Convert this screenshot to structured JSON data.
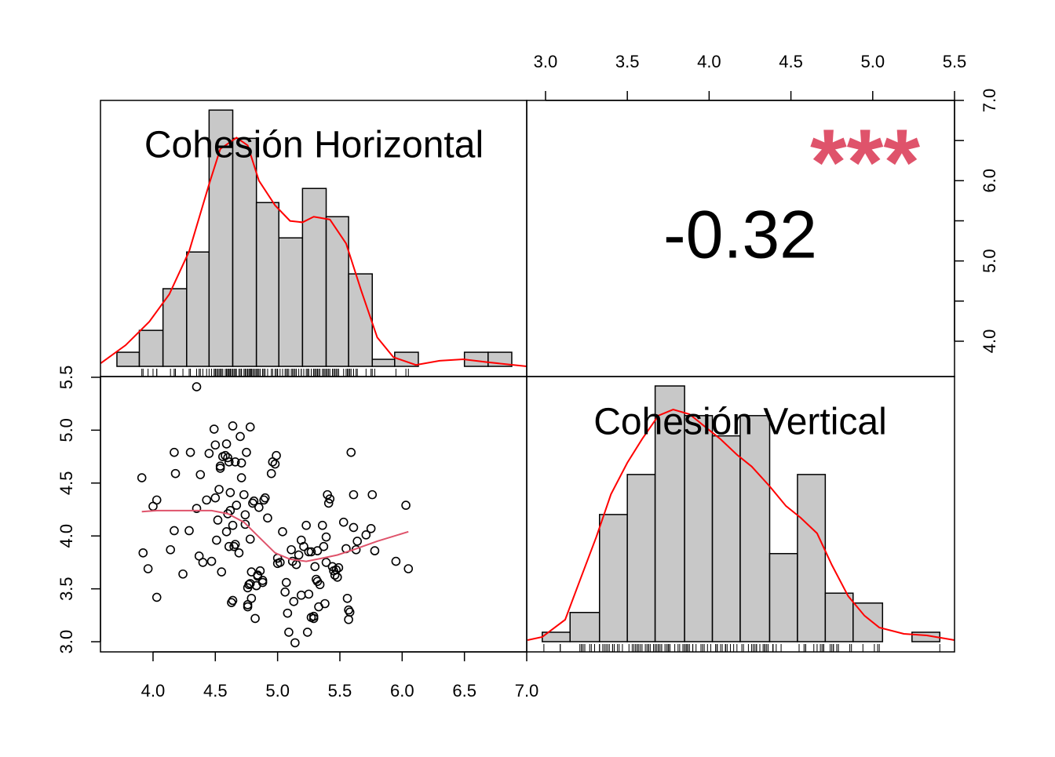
{
  "chart_data": {
    "type": "pairs",
    "variables": [
      "Cohesión Horizontal",
      "Cohesión Vertical"
    ],
    "correlation": -0.32,
    "stars": "***",
    "stars_color": "#df536b",
    "xlim": [
      3.578,
      7.0
    ],
    "xticks": [
      {
        "value": 4,
        "label": "4.0"
      },
      {
        "value": 4.5,
        "label": "4.5"
      },
      {
        "value": 5,
        "label": "5.0"
      },
      {
        "value": 5.5,
        "label": "5.5"
      },
      {
        "value": 6,
        "label": "6.0"
      },
      {
        "value": 6.5,
        "label": "6.5"
      },
      {
        "value": 7,
        "label": "7.0"
      }
    ],
    "ylim": [
      2.904,
      5.507
    ],
    "yticks": [
      {
        "value": 3,
        "label": "3.0"
      },
      {
        "value": 3.5,
        "label": "3.5"
      },
      {
        "value": 4,
        "label": "4.0"
      },
      {
        "value": 4.5,
        "label": "4.5"
      },
      {
        "value": 5,
        "label": "5.0"
      },
      {
        "value": 5.5,
        "label": "5.5"
      }
    ],
    "x2lim": [
      2.885,
      5.5
    ],
    "x2ticks": [
      {
        "value": 3,
        "label": "3.0"
      },
      {
        "value": 3.5,
        "label": "3.5"
      },
      {
        "value": 4,
        "label": "4.0"
      },
      {
        "value": 4.5,
        "label": "4.5"
      },
      {
        "value": 5,
        "label": "5.0"
      },
      {
        "value": 5.5,
        "label": "5.5"
      }
    ],
    "y2lim": [
      3.56,
      7.0
    ],
    "y2ticks": [
      {
        "value": 4,
        "label": "4.0"
      },
      {
        "value": 5,
        "label": "5.0"
      },
      {
        "value": 6,
        "label": "6.0"
      },
      {
        "value": 7,
        "label": "7.0"
      }
    ],
    "y2minor": [
      4.5,
      5.5,
      6.5
    ],
    "histograms": [
      {
        "color": "#c8c8c8",
        "ylim": [
          -1.44,
          37.67
        ],
        "bins": [
          3.71,
          3.89,
          4.08,
          4.27,
          4.45,
          4.64,
          4.83,
          5.01,
          5.2,
          5.39,
          5.57,
          5.76,
          5.94,
          6.13,
          6.32,
          6.5,
          6.69,
          6.88
        ],
        "values": [
          2,
          5.1,
          11,
          16.2,
          36.3,
          32.3,
          23.2,
          18.2,
          25.2,
          21.2,
          13.1,
          1,
          2,
          0,
          0,
          2,
          2
        ],
        "density": {
          "color": "#ff0000",
          "x": [
            3.58,
            3.78,
            3.97,
            4.13,
            4.29,
            4.45,
            4.54,
            4.67,
            4.76,
            4.85,
            4.98,
            5.1,
            5.2,
            5.29,
            5.42,
            5.55,
            5.67,
            5.8,
            5.93,
            6.11,
            6.3,
            6.49,
            6.68,
            7.0
          ],
          "y": [
            0.44,
            3,
            6.33,
            10.2,
            16.3,
            25.8,
            30.8,
            32.4,
            31.3,
            26.3,
            22.8,
            20.6,
            20.4,
            21.2,
            20.8,
            17.4,
            10.8,
            4.1,
            1.3,
            0.2,
            0.8,
            1,
            0.6,
            0
          ]
        }
      },
      {
        "color": "#c8c8c8",
        "ylim": [
          -2.17,
          56.3
        ],
        "bins": [
          2.98,
          3.15,
          3.33,
          3.5,
          3.67,
          3.85,
          4.02,
          4.19,
          4.37,
          4.54,
          4.71,
          4.88,
          5.06,
          5.24,
          5.41
        ],
        "values": [
          2,
          6.2,
          27,
          35.5,
          54.3,
          48,
          43.7,
          48,
          18.7,
          35.5,
          10.3,
          8.2,
          0,
          2
        ],
        "density": {
          "color": "#ff0000",
          "x": [
            2.89,
            2.98,
            3.12,
            3.21,
            3.31,
            3.4,
            3.5,
            3.59,
            3.69,
            3.78,
            3.88,
            3.98,
            4.07,
            4.17,
            4.26,
            4.37,
            4.47,
            4.56,
            4.66,
            4.75,
            4.85,
            4.95,
            5.04,
            5.19,
            5.33,
            5.5
          ],
          "y": [
            0.33,
            1,
            4.67,
            13,
            22.2,
            31.3,
            38,
            43,
            48,
            49.3,
            48.3,
            45.5,
            43,
            39.7,
            37.2,
            33,
            28.8,
            26.3,
            23,
            16.3,
            9.67,
            5.5,
            3,
            1.67,
            1.33,
            0.33
          ]
        }
      }
    ],
    "scatter": {
      "x": [
        3.91,
        3.92,
        3.96,
        4.0,
        4.03,
        4.03,
        4.14,
        4.17,
        4.17,
        4.18,
        4.24,
        4.3,
        4.29,
        4.35,
        4.37,
        4.38,
        4.35,
        4.4,
        4.43,
        4.45,
        4.47,
        4.49,
        4.5,
        4.5,
        4.51,
        4.52,
        4.53,
        4.54,
        4.54,
        4.55,
        4.56,
        4.58,
        4.59,
        4.6,
        4.61,
        4.59,
        4.6,
        4.61,
        4.62,
        4.62,
        4.63,
        4.64,
        4.64,
        4.64,
        4.65,
        4.66,
        4.66,
        4.67,
        4.69,
        4.7,
        4.71,
        4.71,
        4.73,
        4.74,
        4.74,
        4.75,
        4.76,
        4.76,
        4.76,
        4.78,
        4.77,
        4.78,
        4.78,
        4.79,
        4.79,
        4.8,
        4.81,
        4.82,
        4.83,
        4.84,
        4.84,
        4.85,
        4.86,
        4.88,
        4.88,
        4.89,
        4.9,
        4.92,
        4.95,
        4.96,
        4.98,
        4.99,
        5.0,
        5.0,
        5.02,
        5.04,
        5.06,
        5.07,
        5.08,
        5.09,
        5.11,
        5.12,
        5.13,
        5.14,
        5.15,
        5.17,
        5.19,
        5.19,
        5.21,
        5.23,
        5.24,
        5.25,
        5.25,
        5.27,
        5.27,
        5.29,
        5.29,
        5.3,
        5.31,
        5.32,
        5.32,
        5.33,
        5.34,
        5.36,
        5.37,
        5.38,
        5.39,
        5.39,
        5.4,
        5.41,
        5.42,
        5.44,
        5.45,
        5.46,
        5.47,
        5.48,
        5.49,
        5.53,
        5.55,
        5.56,
        5.57,
        5.57,
        5.58,
        5.59,
        5.61,
        5.61,
        5.63,
        5.64,
        5.71,
        5.75,
        5.76,
        5.78,
        5.95,
        6.03,
        6.05
      ],
      "y": [
        4.55,
        3.84,
        3.69,
        4.28,
        4.34,
        3.42,
        3.87,
        4.79,
        4.05,
        4.59,
        3.64,
        4.79,
        4.05,
        5.41,
        3.81,
        4.58,
        4.26,
        3.75,
        4.34,
        4.78,
        3.76,
        5.01,
        4.86,
        4.36,
        3.96,
        4.15,
        4.44,
        4.64,
        4.66,
        3.66,
        4.75,
        4.76,
        4.87,
        4.74,
        4.7,
        4.04,
        4.21,
        3.9,
        4.41,
        4.24,
        3.37,
        3.39,
        4.1,
        5.04,
        3.9,
        3.92,
        4.7,
        4.29,
        3.84,
        4.94,
        4.55,
        4.69,
        4.39,
        4.2,
        4.11,
        4.79,
        3.51,
        3.35,
        3.33,
        5.03,
        3.54,
        3.55,
        3.97,
        3.66,
        3.41,
        4.31,
        4.33,
        3.22,
        3.53,
        3.62,
        3.63,
        4.27,
        3.67,
        3.58,
        3.56,
        4.34,
        4.36,
        4.17,
        4.59,
        4.7,
        4.68,
        4.76,
        3.79,
        3.74,
        3.75,
        4.04,
        3.47,
        3.56,
        3.27,
        3.09,
        3.87,
        3.76,
        3.38,
        2.99,
        3.73,
        3.82,
        3.96,
        3.44,
        3.9,
        4.1,
        3.09,
        3.85,
        3.45,
        3.85,
        3.23,
        3.24,
        3.22,
        3.71,
        3.59,
        3.86,
        3.57,
        3.33,
        3.54,
        4.1,
        3.9,
        3.36,
        3.99,
        3.75,
        4.39,
        4.31,
        4.35,
        3.71,
        3.67,
        3.63,
        3.68,
        3.61,
        3.7,
        4.13,
        3.88,
        3.41,
        3.3,
        3.21,
        3.28,
        4.79,
        4.39,
        4.08,
        3.87,
        3.95,
        4.01,
        4.07,
        4.39,
        3.86,
        3.76,
        4.29,
        3.69
      ],
      "smooth": {
        "color": "#df536b",
        "x": [
          3.91,
          4.03,
          4.22,
          4.47,
          4.6,
          4.73,
          4.85,
          4.98,
          5.1,
          5.23,
          5.36,
          5.48,
          5.61,
          5.8,
          6.05
        ],
        "y": [
          4.23,
          4.24,
          4.24,
          4.24,
          4.21,
          4.13,
          3.99,
          3.84,
          3.78,
          3.76,
          3.79,
          3.82,
          3.87,
          3.95,
          4.04
        ]
      }
    }
  }
}
